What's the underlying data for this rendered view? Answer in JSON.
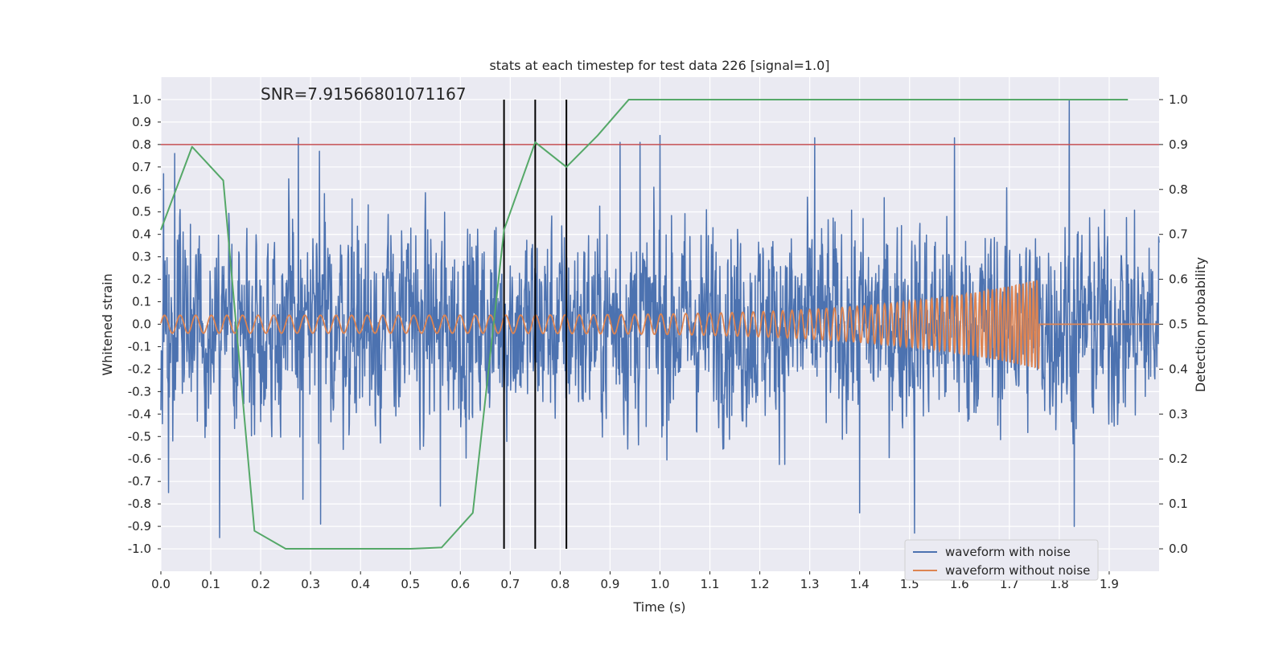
{
  "chart_data": {
    "type": "line",
    "title": "stats at each timestep for test data 226 [signal=1.0]",
    "xlabel": "Time (s)",
    "ylabel": "Whitened strain",
    "y2label": "Detection probability",
    "annotation": "SNR=7.91566801071167",
    "xlim": [
      0.0,
      2.0
    ],
    "ylim": [
      -1.1,
      1.1
    ],
    "y2lim": [
      -0.05,
      1.05
    ],
    "x_ticks": [
      0.0,
      0.1,
      0.2,
      0.3,
      0.4,
      0.5,
      0.6,
      0.7,
      0.8,
      0.9,
      1.0,
      1.1,
      1.2,
      1.3,
      1.4,
      1.5,
      1.6,
      1.7,
      1.8,
      1.9
    ],
    "x_tick_labels": [
      "0.0",
      "0.1",
      "0.2",
      "0.3",
      "0.4",
      "0.5",
      "0.6",
      "0.7",
      "0.8",
      "0.9",
      "1.0",
      "1.1",
      "1.2",
      "1.3",
      "1.4",
      "1.5",
      "1.6",
      "1.7",
      "1.8",
      "1.9"
    ],
    "y_ticks": [
      1.0,
      0.9,
      0.8,
      0.7,
      0.6,
      0.5,
      0.4,
      0.3,
      0.2,
      0.1,
      0.0,
      -0.1,
      -0.2,
      -0.3,
      -0.4,
      -0.5,
      -0.6,
      -0.7,
      -0.8,
      -0.9,
      -1.0
    ],
    "y_tick_labels": [
      "1.0",
      "0.9",
      "0.8",
      "0.7",
      "0.6",
      "0.5",
      "0.4",
      "0.3",
      "0.2",
      "0.1",
      "0.0",
      "-0.1",
      "-0.2",
      "-0.3",
      "-0.4",
      "-0.5",
      "-0.6",
      "-0.7",
      "-0.8",
      "-0.9",
      "-1.0"
    ],
    "y2_ticks": [
      1.0,
      0.9,
      0.8,
      0.7,
      0.6,
      0.5,
      0.4,
      0.3,
      0.2,
      0.1,
      0.0
    ],
    "y2_tick_labels": [
      "1.0",
      "0.9",
      "0.8",
      "0.7",
      "0.6",
      "0.5",
      "0.4",
      "0.3",
      "0.2",
      "0.1",
      "0.0"
    ],
    "grid": true,
    "legend_position": "bottom-right",
    "series": [
      {
        "name": "waveform with noise",
        "color": "#4c72b0",
        "axis": "left",
        "duration": 2.0,
        "amplitude_typical": 0.45,
        "peaks": [
          [
            0.005,
            0.67
          ],
          [
            0.015,
            -0.75
          ],
          [
            0.028,
            0.76
          ],
          [
            0.118,
            -0.95
          ],
          [
            0.275,
            0.83
          ],
          [
            0.285,
            -0.78
          ],
          [
            0.318,
            0.77
          ],
          [
            0.32,
            -0.89
          ],
          [
            0.56,
            -0.81
          ],
          [
            0.92,
            0.81
          ],
          [
            0.96,
            0.81
          ],
          [
            1.0,
            0.84
          ],
          [
            1.31,
            0.83
          ],
          [
            1.4,
            -0.84
          ],
          [
            1.51,
            -0.93
          ],
          [
            1.59,
            0.83
          ],
          [
            1.82,
            1.0
          ],
          [
            1.83,
            -0.9
          ]
        ]
      },
      {
        "name": "waveform without noise",
        "color": "#dd8452",
        "axis": "left",
        "t_start": 0.0,
        "t_merge": 1.76,
        "f_start": 32,
        "f_end": 150,
        "amp_start": 0.04,
        "amp_end": 0.2
      },
      {
        "name": "",
        "color": "#55a868",
        "axis": "right",
        "x": [
          0.0,
          0.0625,
          0.125,
          0.1875,
          0.25,
          0.3125,
          0.375,
          0.4375,
          0.5,
          0.5625,
          0.625,
          0.6875,
          0.75,
          0.8125,
          0.875,
          0.9375,
          1.0,
          1.0625,
          1.125,
          1.1875,
          1.25,
          1.3125,
          1.375,
          1.4375,
          1.5,
          1.5625,
          1.625,
          1.6875,
          1.75,
          1.8125,
          1.875,
          1.9375
        ],
        "values": [
          0.71,
          0.895,
          0.82,
          0.04,
          0.0,
          0.0,
          0.0,
          0.0,
          0.0,
          0.003,
          0.08,
          0.71,
          0.905,
          0.85,
          0.92,
          1.0,
          1.0,
          1.0,
          1.0,
          1.0,
          1.0,
          1.0,
          1.0,
          1.0,
          1.0,
          1.0,
          1.0,
          1.0,
          1.0,
          1.0,
          1.0,
          1.0
        ]
      }
    ],
    "threshold": {
      "axis": "right",
      "value": 0.9,
      "color": "#c44e52"
    },
    "vlines": [
      {
        "x": 0.6875,
        "y2_from": 0.0,
        "y2_to": 1.0
      },
      {
        "x": 0.75,
        "y2_from": 0.0,
        "y2_to": 1.0
      },
      {
        "x": 0.8125,
        "y2_from": 0.0,
        "y2_to": 1.0
      }
    ],
    "vline_color": "#000000",
    "plot_background": "#eaeaf2",
    "grid_color": "#ffffff"
  }
}
